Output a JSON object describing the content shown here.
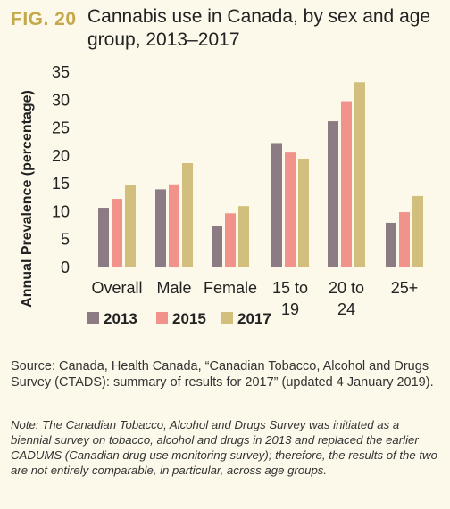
{
  "figure": {
    "label": "FIG. 20",
    "title": "Cannabis use in Canada, by sex and age group, 2013–2017"
  },
  "chart_data": {
    "type": "bar",
    "ylabel": "Annual Prevalence (percentage)",
    "xlabel": "",
    "ylim": [
      0,
      35
    ],
    "yticks": [
      0,
      5,
      10,
      15,
      20,
      25,
      30,
      35
    ],
    "grid": false,
    "legend_position": "bottom",
    "categories": [
      "Overall",
      "Male",
      "Female",
      "15 to 19",
      "20 to 24",
      "25+"
    ],
    "category_lines": [
      [
        "Overall"
      ],
      [
        "Male"
      ],
      [
        "Female"
      ],
      [
        "15 to",
        "19"
      ],
      [
        "20 to",
        "24"
      ],
      [
        "25+"
      ]
    ],
    "series": [
      {
        "name": "2013",
        "color": "#8c7b82",
        "values": [
          10.7,
          14.0,
          7.4,
          22.3,
          26.2,
          8.0
        ]
      },
      {
        "name": "2015",
        "color": "#f1938a",
        "values": [
          12.3,
          14.9,
          9.7,
          20.6,
          29.8,
          9.9
        ]
      },
      {
        "name": "2017",
        "color": "#d2be7d",
        "values": [
          14.8,
          18.7,
          11.0,
          19.5,
          33.2,
          12.8
        ]
      }
    ]
  },
  "source": "Source: Canada, Health Canada, “Canadian Tobacco, Alcohol and Drugs Survey (CTADS): summary of results for 2017” (updated 4 January 2019).",
  "note": "Note: The Canadian Tobacco, Alcohol and Drugs Survey was initiated as a biennial survey on tobacco, alcohol and drugs in 2013 and replaced the earlier CADUMS (Canadian drug use monitoring survey); therefore, the results of the two are not entirely comparable, in particular, across age groups."
}
